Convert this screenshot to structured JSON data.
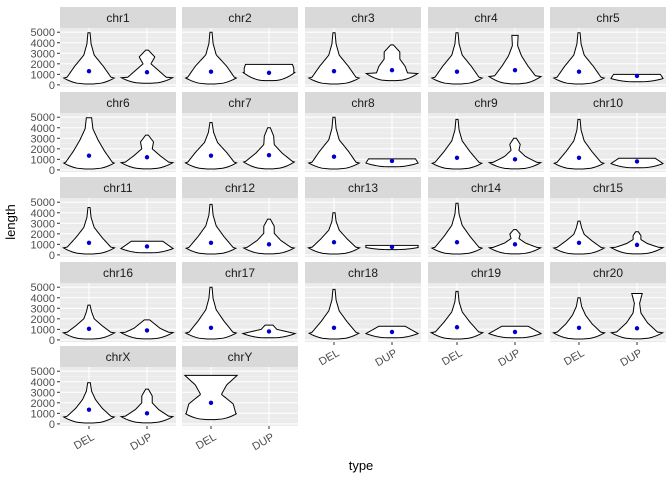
{
  "chart_data": {
    "type": "violin",
    "facet_by": "chr",
    "xlabel": "type",
    "ylabel": "length",
    "categories": [
      "DEL",
      "DUP"
    ],
    "y_ticks": [
      0,
      1000,
      2000,
      3000,
      4000,
      5000
    ],
    "y_tick_labels": [
      "0",
      "1000",
      "2000",
      "3000",
      "4000",
      "5000"
    ],
    "ylim": [
      -200,
      5400
    ],
    "grid": true,
    "facet_columns": 5,
    "colors": {
      "panel_bg": "#ebebeb",
      "strip_bg": "#d9d9d9",
      "grid_major": "#ffffff",
      "grid_minor": "#f4f4f4",
      "violin_fill": "#ffffff",
      "violin_stroke": "#000000",
      "mean_point": "#0000cc"
    },
    "panels": [
      {
        "chr": "chr1",
        "violins": {
          "DEL": {
            "range": [
              80,
              4950
            ],
            "peak": 700,
            "mean": 1300,
            "widths": [
              0.85,
              0.55,
              0.2,
              0.08,
              0.04
            ]
          },
          "DUP": {
            "range": [
              150,
              3300
            ],
            "peak": 700,
            "mean": 1200,
            "widths": [
              0.75,
              0.45,
              0.15,
              0.3,
              0.05
            ]
          }
        }
      },
      {
        "chr": "chr2",
        "violins": {
          "DEL": {
            "range": [
              80,
              5000
            ],
            "peak": 700,
            "mean": 1250,
            "widths": [
              0.9,
              0.6,
              0.2,
              0.08,
              0.04
            ]
          },
          "DUP": {
            "range": [
              400,
              1950
            ],
            "peak": 1200,
            "mean": 1150,
            "widths": [
              0.95,
              0.95,
              0.9
            ]
          }
        }
      },
      {
        "chr": "chr3",
        "violins": {
          "DEL": {
            "range": [
              80,
              4950
            ],
            "peak": 700,
            "mean": 1300,
            "widths": [
              0.85,
              0.55,
              0.2,
              0.08,
              0.04
            ]
          },
          "DUP": {
            "range": [
              400,
              3800
            ],
            "peak": 1100,
            "mean": 1400,
            "widths": [
              0.6,
              0.5,
              0.3,
              0.3,
              0.05
            ]
          }
        }
      },
      {
        "chr": "chr4",
        "violins": {
          "DEL": {
            "range": [
              80,
              4950
            ],
            "peak": 700,
            "mean": 1250,
            "widths": [
              0.85,
              0.55,
              0.2,
              0.08,
              0.04
            ]
          },
          "DUP": {
            "range": [
              100,
              4700
            ],
            "peak": 800,
            "mean": 1400,
            "widths": [
              0.8,
              0.5,
              0.25,
              0.1,
              0.12
            ]
          }
        }
      },
      {
        "chr": "chr5",
        "violins": {
          "DEL": {
            "range": [
              80,
              4950
            ],
            "peak": 700,
            "mean": 1250,
            "widths": [
              0.85,
              0.55,
              0.2,
              0.08,
              0.04
            ]
          },
          "DUP": {
            "range": [
              300,
              1000
            ],
            "peak": 600,
            "mean": 850,
            "widths": [
              1.0,
              0.9
            ]
          }
        }
      },
      {
        "chr": "chr6",
        "violins": {
          "DEL": {
            "range": [
              80,
              4950
            ],
            "peak": 700,
            "mean": 1350,
            "widths": [
              0.9,
              0.6,
              0.35,
              0.15,
              0.1
            ]
          },
          "DUP": {
            "range": [
              100,
              3300
            ],
            "peak": 700,
            "mean": 1200,
            "widths": [
              0.85,
              0.5,
              0.2,
              0.25,
              0.05
            ]
          }
        }
      },
      {
        "chr": "chr7",
        "violins": {
          "DEL": {
            "range": [
              80,
              4500
            ],
            "peak": 700,
            "mean": 1350,
            "widths": [
              0.9,
              0.6,
              0.25,
              0.1,
              0.04
            ]
          },
          "DUP": {
            "range": [
              100,
              4000
            ],
            "peak": 800,
            "mean": 1400,
            "widths": [
              0.9,
              0.5,
              0.2,
              0.18,
              0.05
            ]
          }
        }
      },
      {
        "chr": "chr8",
        "violins": {
          "DEL": {
            "range": [
              80,
              5000
            ],
            "peak": 700,
            "mean": 1250,
            "widths": [
              0.85,
              0.55,
              0.2,
              0.08,
              0.04
            ]
          },
          "DUP": {
            "range": [
              300,
              1050
            ],
            "peak": 650,
            "mean": 850,
            "widths": [
              1.0,
              0.9
            ]
          }
        }
      },
      {
        "chr": "chr9",
        "violins": {
          "DEL": {
            "range": [
              80,
              4800
            ],
            "peak": 700,
            "mean": 1150,
            "widths": [
              0.85,
              0.5,
              0.2,
              0.08,
              0.04
            ]
          },
          "DUP": {
            "range": [
              100,
              3000
            ],
            "peak": 700,
            "mean": 1000,
            "widths": [
              0.85,
              0.4,
              0.15,
              0.2,
              0.05
            ]
          }
        }
      },
      {
        "chr": "chr10",
        "violins": {
          "DEL": {
            "range": [
              80,
              4800
            ],
            "peak": 700,
            "mean": 1150,
            "widths": [
              0.85,
              0.5,
              0.2,
              0.08,
              0.04
            ]
          },
          "DUP": {
            "range": [
              200,
              1100
            ],
            "peak": 600,
            "mean": 800,
            "widths": [
              1.0,
              0.7
            ]
          }
        }
      },
      {
        "chr": "chr11",
        "violins": {
          "DEL": {
            "range": [
              80,
              4500
            ],
            "peak": 700,
            "mean": 1150,
            "widths": [
              0.85,
              0.5,
              0.2,
              0.08,
              0.04
            ]
          },
          "DUP": {
            "range": [
              200,
              1300
            ],
            "peak": 600,
            "mean": 800,
            "widths": [
              1.0,
              0.6
            ]
          }
        }
      },
      {
        "chr": "chr12",
        "violins": {
          "DEL": {
            "range": [
              80,
              4800
            ],
            "peak": 700,
            "mean": 1150,
            "widths": [
              0.85,
              0.5,
              0.2,
              0.08,
              0.04
            ]
          },
          "DUP": {
            "range": [
              100,
              3400
            ],
            "peak": 700,
            "mean": 1000,
            "widths": [
              0.85,
              0.45,
              0.2,
              0.2,
              0.05
            ]
          }
        }
      },
      {
        "chr": "chr13",
        "violins": {
          "DEL": {
            "range": [
              80,
              4000
            ],
            "peak": 700,
            "mean": 1200,
            "widths": [
              0.85,
              0.5,
              0.2,
              0.08,
              0.04
            ]
          },
          "DUP": {
            "range": [
              500,
              900
            ],
            "peak": 700,
            "mean": 750,
            "widths": [
              1.0,
              1.0
            ]
          }
        }
      },
      {
        "chr": "chr14",
        "violins": {
          "DEL": {
            "range": [
              80,
              4900
            ],
            "peak": 700,
            "mean": 1200,
            "widths": [
              0.85,
              0.5,
              0.2,
              0.08,
              0.04
            ]
          },
          "DUP": {
            "range": [
              100,
              2400
            ],
            "peak": 700,
            "mean": 1000,
            "widths": [
              0.85,
              0.4,
              0.15,
              0.2,
              0.05
            ]
          }
        }
      },
      {
        "chr": "chr15",
        "violins": {
          "DEL": {
            "range": [
              80,
              3200
            ],
            "peak": 700,
            "mean": 1150,
            "widths": [
              0.85,
              0.5,
              0.2,
              0.1,
              0.04
            ]
          },
          "DUP": {
            "range": [
              100,
              2200
            ],
            "peak": 700,
            "mean": 950,
            "widths": [
              0.85,
              0.4,
              0.15,
              0.15,
              0.05
            ]
          }
        }
      },
      {
        "chr": "chr16",
        "violins": {
          "DEL": {
            "range": [
              80,
              3300
            ],
            "peak": 700,
            "mean": 1050,
            "widths": [
              0.85,
              0.5,
              0.2,
              0.1,
              0.04
            ]
          },
          "DUP": {
            "range": [
              100,
              1900
            ],
            "peak": 700,
            "mean": 900,
            "widths": [
              0.85,
              0.5,
              0.3,
              0.1
            ]
          }
        }
      },
      {
        "chr": "chr17",
        "violins": {
          "DEL": {
            "range": [
              80,
              5000
            ],
            "peak": 700,
            "mean": 1150,
            "widths": [
              0.85,
              0.5,
              0.2,
              0.08,
              0.04
            ]
          },
          "DUP": {
            "range": [
              200,
              1400
            ],
            "peak": 600,
            "mean": 800,
            "widths": [
              1.0,
              0.3,
              0.15
            ]
          }
        }
      },
      {
        "chr": "chr18",
        "violins": {
          "DEL": {
            "range": [
              80,
              4800
            ],
            "peak": 700,
            "mean": 1150,
            "widths": [
              0.85,
              0.5,
              0.2,
              0.08,
              0.04
            ]
          },
          "DUP": {
            "range": [
              200,
              1300
            ],
            "peak": 600,
            "mean": 750,
            "widths": [
              1.0,
              0.5
            ]
          }
        }
      },
      {
        "chr": "chr19",
        "violins": {
          "DEL": {
            "range": [
              80,
              4600
            ],
            "peak": 700,
            "mean": 1200,
            "widths": [
              0.85,
              0.5,
              0.2,
              0.08,
              0.04
            ]
          },
          "DUP": {
            "range": [
              200,
              1300
            ],
            "peak": 600,
            "mean": 750,
            "widths": [
              1.0,
              0.5
            ]
          }
        }
      },
      {
        "chr": "chr20",
        "violins": {
          "DEL": {
            "range": [
              80,
              4000
            ],
            "peak": 700,
            "mean": 1150,
            "widths": [
              0.85,
              0.5,
              0.25,
              0.1,
              0.04
            ]
          },
          "DUP": {
            "range": [
              100,
              4400
            ],
            "peak": 700,
            "mean": 1100,
            "widths": [
              0.8,
              0.4,
              0.15,
              0.1,
              0.2
            ]
          }
        }
      },
      {
        "chr": "chrX",
        "violins": {
          "DEL": {
            "range": [
              80,
              3900
            ],
            "peak": 700,
            "mean": 1350,
            "widths": [
              0.85,
              0.5,
              0.25,
              0.1,
              0.05
            ]
          },
          "DUP": {
            "range": [
              100,
              3300
            ],
            "peak": 700,
            "mean": 1000,
            "widths": [
              0.85,
              0.45,
              0.2,
              0.2,
              0.05
            ]
          }
        }
      },
      {
        "chr": "chrY",
        "violins": {
          "DEL": {
            "range": [
              400,
              4600
            ],
            "peak": 1000,
            "mean": 2000,
            "widths": [
              0.95,
              0.85,
              0.4,
              0.6,
              1.0
            ]
          },
          "DUP": null
        }
      }
    ]
  }
}
